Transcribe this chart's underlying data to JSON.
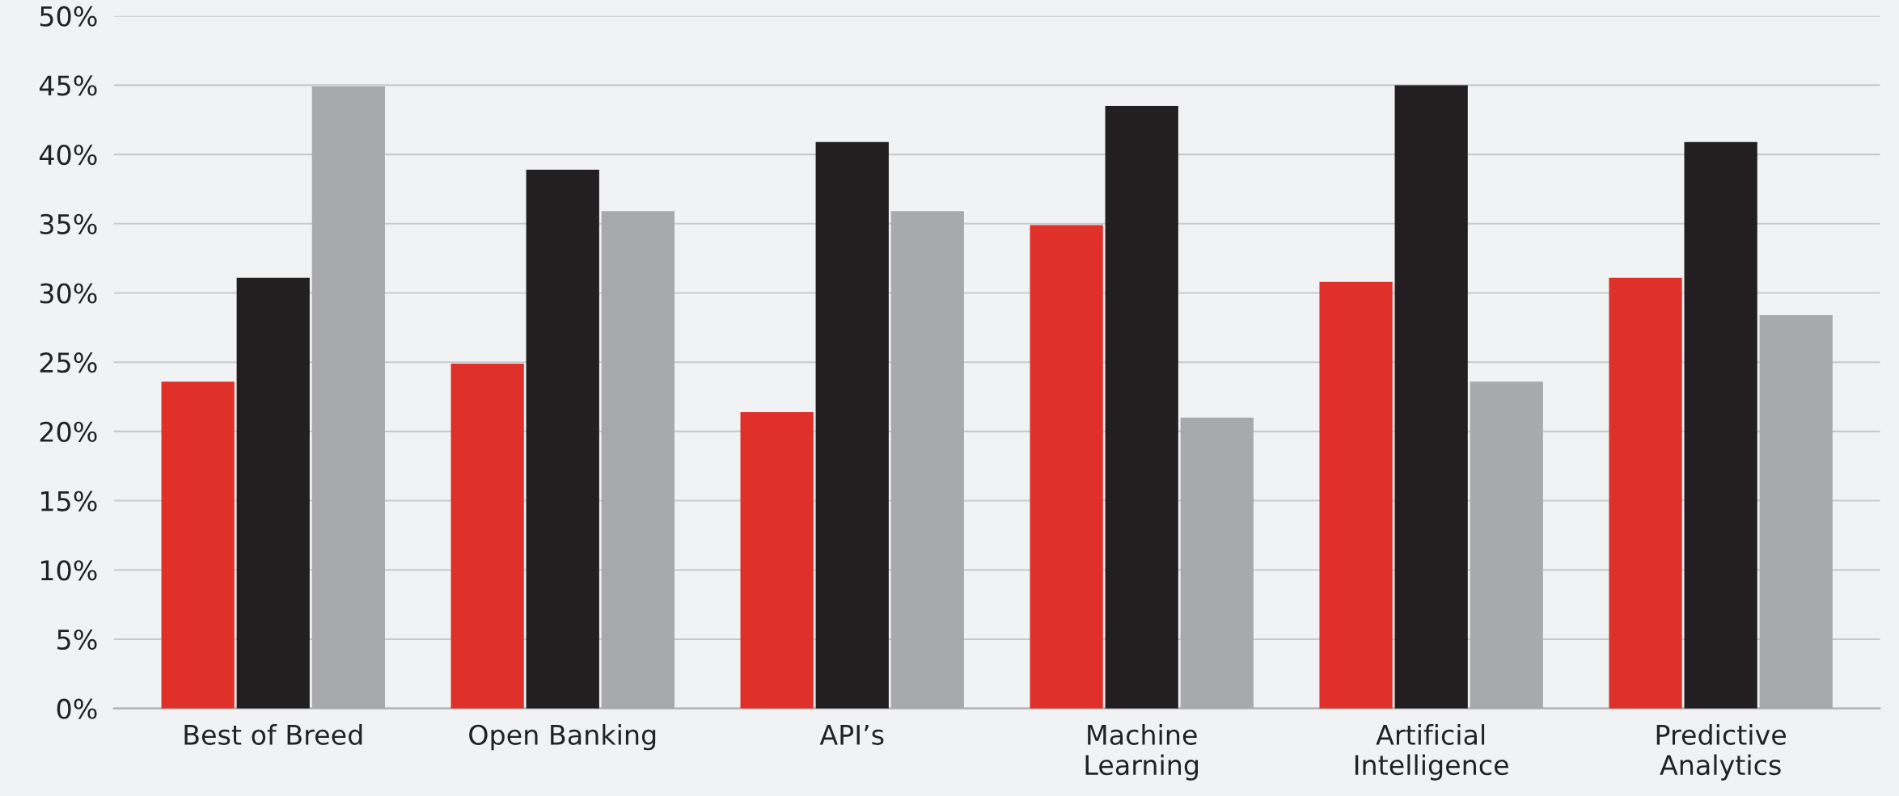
{
  "chart_data": {
    "type": "bar",
    "categories": [
      "Best of Breed",
      "Open Banking",
      "API’s",
      "Machine\nLearning",
      "Artificial\nIntelligence",
      "Predictive\nAnalytics"
    ],
    "series": [
      {
        "color": "#e0302a",
        "values": [
          23.6,
          24.9,
          21.4,
          34.9,
          30.8,
          31.1
        ]
      },
      {
        "color": "#231f20",
        "values": [
          31.1,
          38.9,
          40.9,
          43.5,
          45.0,
          40.9
        ]
      },
      {
        "color": "#a7a9ac",
        "values": [
          44.9,
          35.9,
          35.9,
          21.0,
          23.6,
          28.4
        ]
      }
    ],
    "ylim": [
      0,
      50
    ],
    "yticks": [
      {
        "value": 0,
        "label": "0%"
      },
      {
        "value": 5,
        "label": "5%"
      },
      {
        "value": 10,
        "label": "10%"
      },
      {
        "value": 15,
        "label": "15%"
      },
      {
        "value": 20,
        "label": "20%"
      },
      {
        "value": 25,
        "label": "25%"
      },
      {
        "value": 30,
        "label": "30%"
      },
      {
        "value": 35,
        "label": "35%"
      },
      {
        "value": 40,
        "label": "40%"
      },
      {
        "value": 45,
        "label": "45%"
      },
      {
        "value": 50,
        "label": "50%"
      }
    ],
    "grid": "y"
  }
}
